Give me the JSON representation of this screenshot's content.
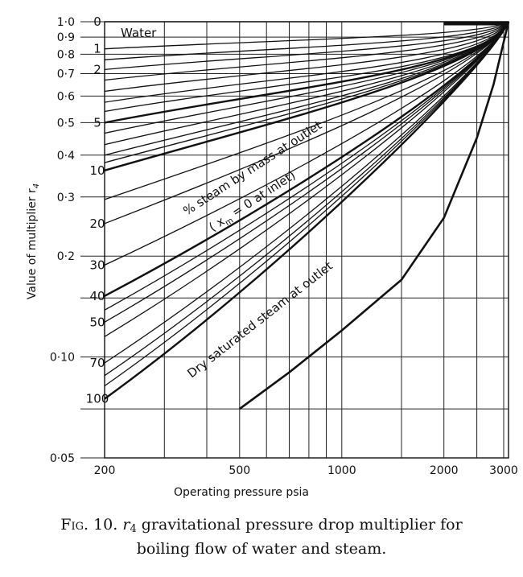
{
  "chart_data": {
    "type": "line",
    "xscale": "log",
    "yscale": "log",
    "xlim": [
      200,
      3100
    ],
    "ylim": [
      0.05,
      1.0
    ],
    "xlabel": "Operating pressure psia",
    "ylabel": "Value of multiplier r",
    "ylabel_sub": "4",
    "x_ticks": [
      {
        "value": 200,
        "label": "200"
      },
      {
        "value": 500,
        "label": "500"
      },
      {
        "value": 1000,
        "label": "1000"
      },
      {
        "value": 2000,
        "label": "2000"
      },
      {
        "value": 3000,
        "label": "3000"
      }
    ],
    "x_gridlines": [
      200,
      300,
      400,
      500,
      600,
      700,
      800,
      900,
      1000,
      1500,
      2000,
      2500,
      3000
    ],
    "y_ticks": [
      {
        "value": 1.0,
        "label": "1·0"
      },
      {
        "value": 0.9,
        "label": "0·9"
      },
      {
        "value": 0.8,
        "label": "0·8"
      },
      {
        "value": 0.7,
        "label": "0·7"
      },
      {
        "value": 0.6,
        "label": "0·6"
      },
      {
        "value": 0.5,
        "label": "0·5"
      },
      {
        "value": 0.4,
        "label": "0·4"
      },
      {
        "value": 0.3,
        "label": "0·3"
      },
      {
        "value": 0.2,
        "label": "0·2"
      },
      {
        "value": 0.1,
        "label": "0·10"
      },
      {
        "value": 0.05,
        "label": "0·05"
      }
    ],
    "y_gridlines": [
      1.0,
      0.9,
      0.8,
      0.7,
      0.6,
      0.5,
      0.4,
      0.3,
      0.2,
      0.15,
      0.1,
      0.07,
      0.05
    ],
    "grid": true,
    "converge_point": {
      "x": 3100,
      "y": 1.0
    },
    "series": [
      {
        "name": "0",
        "label": "0",
        "y200": 1.0,
        "bold": false
      },
      {
        "name": "1",
        "label": "1",
        "y200": 0.83,
        "bold": false
      },
      {
        "y200": 0.77,
        "bold": false
      },
      {
        "name": "2",
        "label": "2",
        "y200": 0.72,
        "bold": false
      },
      {
        "y200": 0.67,
        "bold": false
      },
      {
        "y200": 0.62,
        "bold": false
      },
      {
        "y200": 0.575,
        "bold": false
      },
      {
        "y200": 0.54,
        "bold": false
      },
      {
        "name": "5",
        "label": "5",
        "y200": 0.5,
        "bold": true
      },
      {
        "y200": 0.465,
        "bold": false
      },
      {
        "y200": 0.43,
        "bold": false
      },
      {
        "y200": 0.4,
        "bold": false
      },
      {
        "y200": 0.38,
        "bold": false
      },
      {
        "name": "10",
        "label": "10",
        "y200": 0.36,
        "bold": true
      },
      {
        "y200": 0.295,
        "bold": false
      },
      {
        "name": "20",
        "label": "20",
        "y200": 0.25,
        "bold": false
      },
      {
        "name": "30",
        "label": "30",
        "y200": 0.188,
        "bold": false
      },
      {
        "name": "40",
        "label": "40",
        "y200": 0.152,
        "bold": true
      },
      {
        "y200": 0.138,
        "bold": false
      },
      {
        "name": "50",
        "label": "50",
        "y200": 0.127,
        "bold": false
      },
      {
        "y200": 0.115,
        "bold": false
      },
      {
        "name": "70",
        "label": "70",
        "y200": 0.096,
        "bold": false
      },
      {
        "y200": 0.088,
        "bold": false
      },
      {
        "y200": 0.082,
        "bold": false
      },
      {
        "name": "100",
        "label": "100",
        "y200": 0.075,
        "bold": true
      }
    ],
    "dry_curve": {
      "name": "Dry saturated steam at outlet",
      "points": [
        [
          500,
          0.07
        ],
        [
          700,
          0.09
        ],
        [
          1000,
          0.12
        ],
        [
          1500,
          0.17
        ],
        [
          2000,
          0.26
        ],
        [
          2500,
          0.45
        ],
        [
          2800,
          0.65
        ],
        [
          3100,
          1.0
        ]
      ]
    },
    "annotations": {
      "water": "Water",
      "steam_mass": "% steam by mass at outlet",
      "inlet_prefix": "( x",
      "inlet_sub": "m",
      "inlet_suffix": " = 0 at inlet)",
      "dry": "Dry saturated steam at outlet"
    }
  },
  "caption": {
    "figure_label": "Fig. 10.",
    "symbol": "r",
    "symbol_sub": "4",
    "line1_text": "gravitational pressure drop multiplier for",
    "line2_text": "boiling flow of water and steam."
  }
}
